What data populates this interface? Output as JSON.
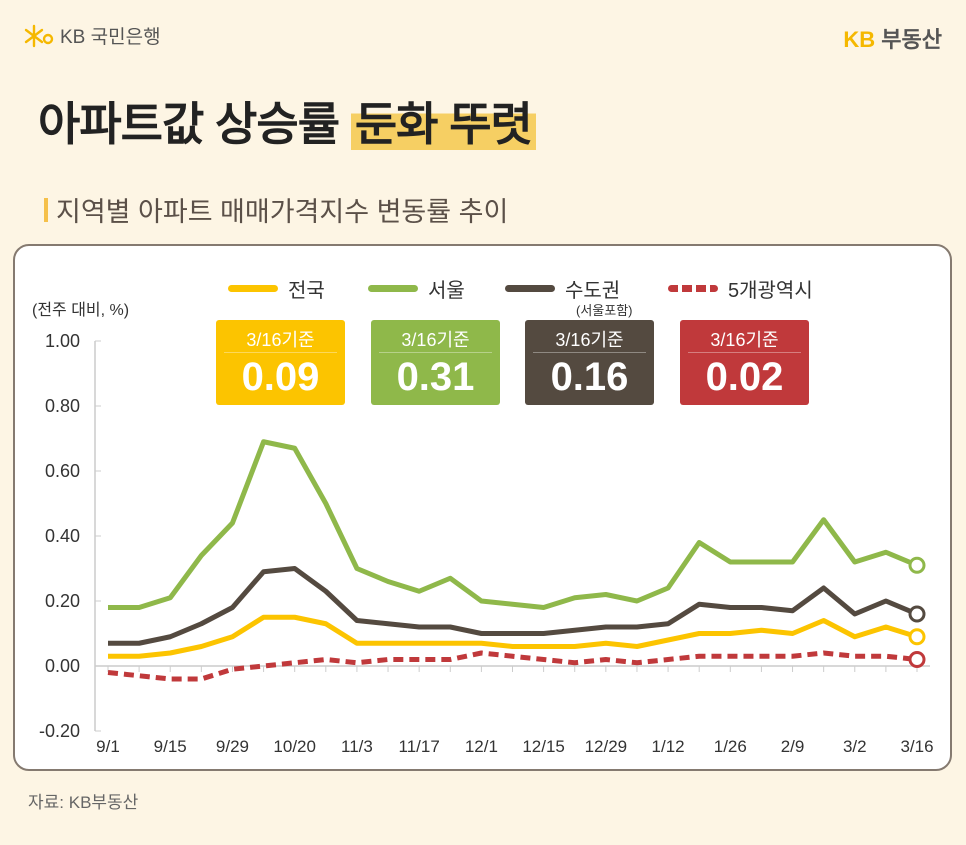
{
  "header": {
    "bank_logo": "KB 국민은행",
    "brand_kb": "KB",
    "brand_name": "부동산"
  },
  "title": {
    "main": "아파트값 상승률",
    "highlight": "둔화 뚜렷"
  },
  "subtitle": "지역별 아파트 매매가격지수 변동률 추이",
  "source": "자료: KB부동산",
  "legend": [
    {
      "name": "전국",
      "color": "#fcc400",
      "style": "solid"
    },
    {
      "name": "서울",
      "color": "#8fb84a",
      "style": "solid"
    },
    {
      "name": "수도권",
      "note": "(서울포함)",
      "color": "#544a40",
      "style": "solid"
    },
    {
      "name": "5개광역시",
      "color": "#c0393b",
      "style": "dashed"
    }
  ],
  "badges": [
    {
      "date": "3/16기준",
      "value": "0.09",
      "color": "#fcc400"
    },
    {
      "date": "3/16기준",
      "value": "0.31",
      "color": "#8fb84a"
    },
    {
      "date": "3/16기준",
      "value": "0.16",
      "color": "#544a40"
    },
    {
      "date": "3/16기준",
      "value": "0.02",
      "color": "#c0393b"
    }
  ],
  "chart_data": {
    "type": "line",
    "ylabel": "(전주 대비, %)",
    "ylim": [
      -0.2,
      1.0
    ],
    "yticks": [
      "1.00",
      "0.80",
      "0.60",
      "0.40",
      "0.20",
      "0.00",
      "-0.20"
    ],
    "ytick_values": [
      1.0,
      0.8,
      0.6,
      0.4,
      0.2,
      0.0,
      -0.2
    ],
    "x": [
      "9/1",
      "9/8",
      "9/15",
      "9/22",
      "9/29",
      "10/13",
      "10/20",
      "10/27",
      "11/3",
      "11/10",
      "11/17",
      "11/24",
      "12/1",
      "12/8",
      "12/15",
      "12/22",
      "12/29",
      "1/5",
      "1/12",
      "1/19",
      "1/26",
      "2/2",
      "2/9",
      "2/23",
      "3/2",
      "3/9",
      "3/16"
    ],
    "xtick_labels": [
      "9/1",
      "9/15",
      "9/29",
      "10/20",
      "11/3",
      "11/17",
      "12/1",
      "12/15",
      "12/29",
      "1/12",
      "1/26",
      "2/9",
      "3/2",
      "3/16"
    ],
    "grid": false,
    "series": [
      {
        "name": "전국",
        "color": "#fcc400",
        "dashed": false,
        "values": [
          0.03,
          0.03,
          0.04,
          0.06,
          0.09,
          0.15,
          0.15,
          0.13,
          0.07,
          0.07,
          0.07,
          0.07,
          0.07,
          0.06,
          0.06,
          0.06,
          0.07,
          0.06,
          0.08,
          0.1,
          0.1,
          0.11,
          0.1,
          0.14,
          0.09,
          0.12,
          0.09
        ]
      },
      {
        "name": "서울",
        "color": "#8fb84a",
        "dashed": false,
        "values": [
          0.18,
          0.18,
          0.21,
          0.34,
          0.44,
          0.69,
          0.67,
          0.5,
          0.3,
          0.26,
          0.23,
          0.27,
          0.2,
          0.19,
          0.18,
          0.21,
          0.22,
          0.2,
          0.24,
          0.38,
          0.32,
          0.32,
          0.32,
          0.45,
          0.32,
          0.35,
          0.31
        ]
      },
      {
        "name": "수도권",
        "color": "#544a40",
        "dashed": false,
        "values": [
          0.07,
          0.07,
          0.09,
          0.13,
          0.18,
          0.29,
          0.3,
          0.23,
          0.14,
          0.13,
          0.12,
          0.12,
          0.1,
          0.1,
          0.1,
          0.11,
          0.12,
          0.12,
          0.13,
          0.19,
          0.18,
          0.18,
          0.17,
          0.24,
          0.16,
          0.2,
          0.16
        ]
      },
      {
        "name": "5개광역시",
        "color": "#c0393b",
        "dashed": true,
        "values": [
          -0.02,
          -0.03,
          -0.04,
          -0.04,
          -0.01,
          0.0,
          0.01,
          0.02,
          0.01,
          0.02,
          0.02,
          0.02,
          0.04,
          0.03,
          0.02,
          0.01,
          0.02,
          0.01,
          0.02,
          0.03,
          0.03,
          0.03,
          0.03,
          0.04,
          0.03,
          0.03,
          0.02
        ]
      }
    ]
  }
}
